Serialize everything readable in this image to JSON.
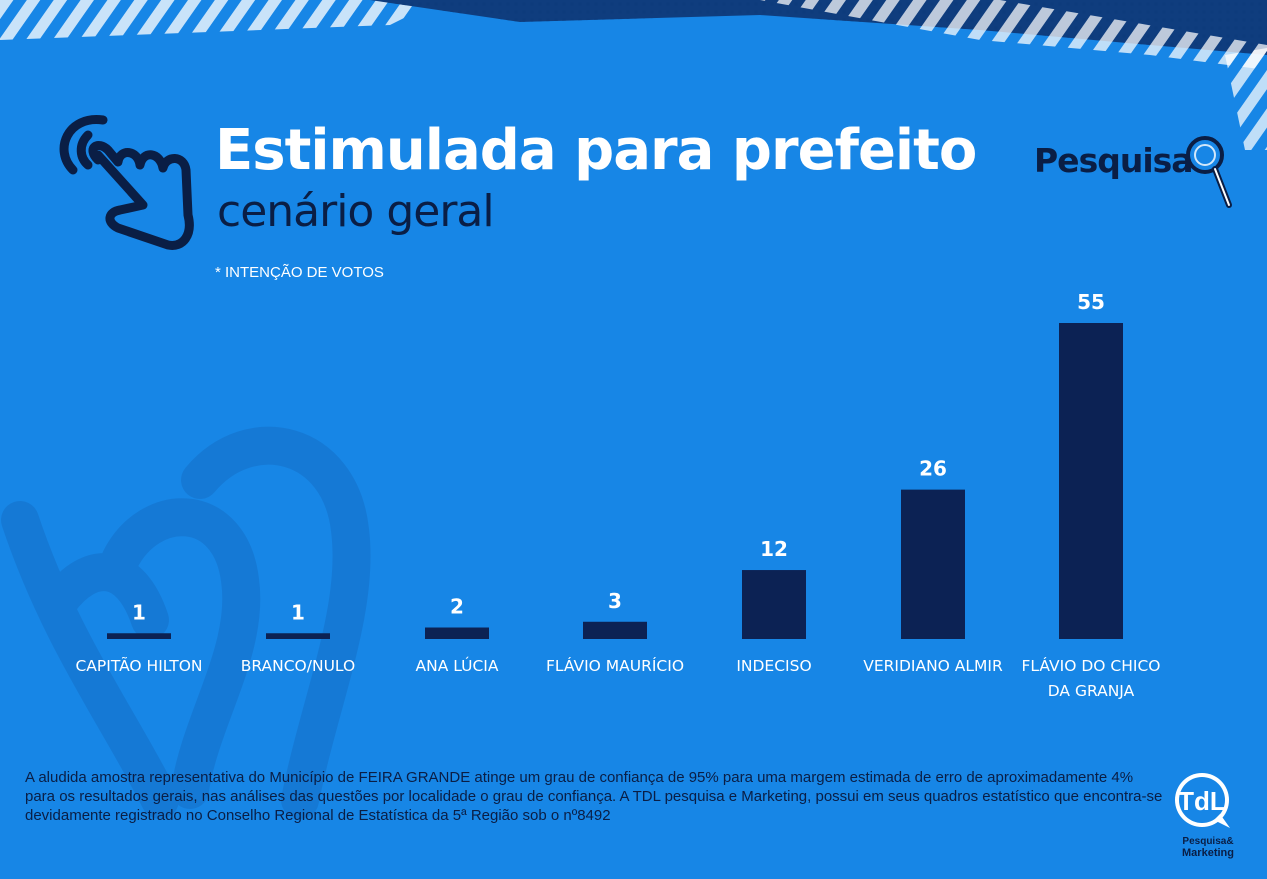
{
  "header": {
    "title": "Estimulada para prefeito",
    "subtitle": "cenário geral",
    "note": "*  INTENÇÃO DE VOTOS",
    "brand": "Pesquisa"
  },
  "chart_data": {
    "type": "bar",
    "categories": [
      "CAPITÃO HILTON",
      "BRANCO/NULO",
      "ANA LÚCIA",
      "FLÁVIO MAURÍCIO",
      "INDECISO",
      "VERIDIANO ALMIR",
      "FLÁVIO DO CHICO DA GRANJA"
    ],
    "category_lines": [
      [
        "CAPITÃO HILTON"
      ],
      [
        "BRANCO/NULO"
      ],
      [
        "ANA LÚCIA"
      ],
      [
        "FLÁVIO MAURÍCIO"
      ],
      [
        "INDECISO"
      ],
      [
        "VERIDIANO ALMIR"
      ],
      [
        "FLÁVIO DO CHICO",
        "DA GRANJA"
      ]
    ],
    "values": [
      1,
      1,
      2,
      3,
      12,
      26,
      55
    ],
    "bar_color": "#0c2254",
    "label_color": "#ffffff",
    "ylim": [
      0,
      55
    ],
    "grid": false
  },
  "footer": {
    "disclaimer": "A aludida amostra representativa do Município de FEIRA GRANDE atinge um grau de confiança de 95% para uma margem estimada de erro de aproximadamente 4% para os resultados gerais, nas análises das questões por localidade o grau de confiança.  A TDL pesquisa e Marketing, possui em seus quadros estatístico que encontra-se devidamente registrado no Conselho Regional de Estatística da 5ª Região sob o nº8492"
  },
  "logo": {
    "mark": "TdL",
    "line1": "Pesquisa&",
    "line2": "Marketing"
  },
  "colors": {
    "background": "#1786e6",
    "dark_navy": "#0a1e45",
    "white": "#ffffff"
  },
  "icons": [
    "hand-pointer-icon",
    "magnifier-icon"
  ]
}
